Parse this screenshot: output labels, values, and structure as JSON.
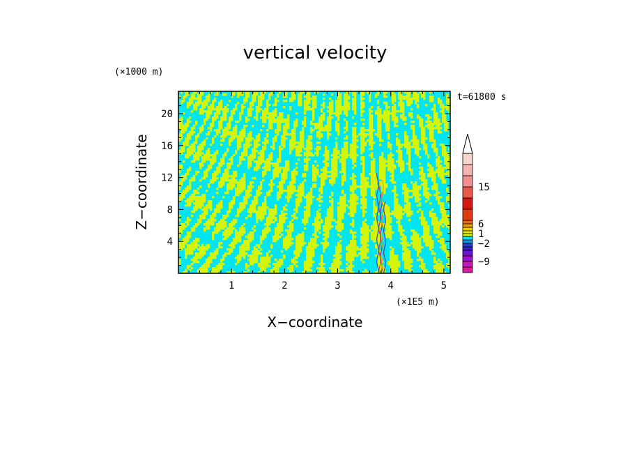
{
  "chart_data": {
    "type": "heatmap",
    "title": "vertical velocity",
    "xlabel": "X−coordinate",
    "ylabel": "Z−coordinate",
    "x_unit": "(×1E5 m)",
    "y_unit": "(×1000 m)",
    "time_label": "t=61800 s",
    "xlim": [
      0,
      5.12
    ],
    "ylim": [
      0,
      22.8
    ],
    "x_ticks": [
      1,
      2,
      3,
      4,
      5
    ],
    "y_ticks": [
      4,
      8,
      12,
      16,
      20
    ],
    "grid": false,
    "colorbar": {
      "position": "right",
      "labels": [
        "15",
        "6",
        "1",
        "−2",
        "−9"
      ],
      "colors": [
        "#d61d9c",
        "#c41ab3",
        "#9a16c4",
        "#6e14c8",
        "#3a1fc8",
        "#1d3fd0",
        "#1f8fd8",
        "#00e5f0",
        "#d6f50a",
        "#e8ef00",
        "#f2cc00",
        "#ee9a00",
        "#e86a08",
        "#e03a10",
        "#d41810",
        "#e8584a",
        "#f09090",
        "#f4b4b0",
        "#f8d2cc"
      ],
      "open_top": true
    },
    "field_colors": {
      "negative": "#00e6f0",
      "positive": "#d2f50a"
    },
    "updraft_column_x": 3.82
  }
}
